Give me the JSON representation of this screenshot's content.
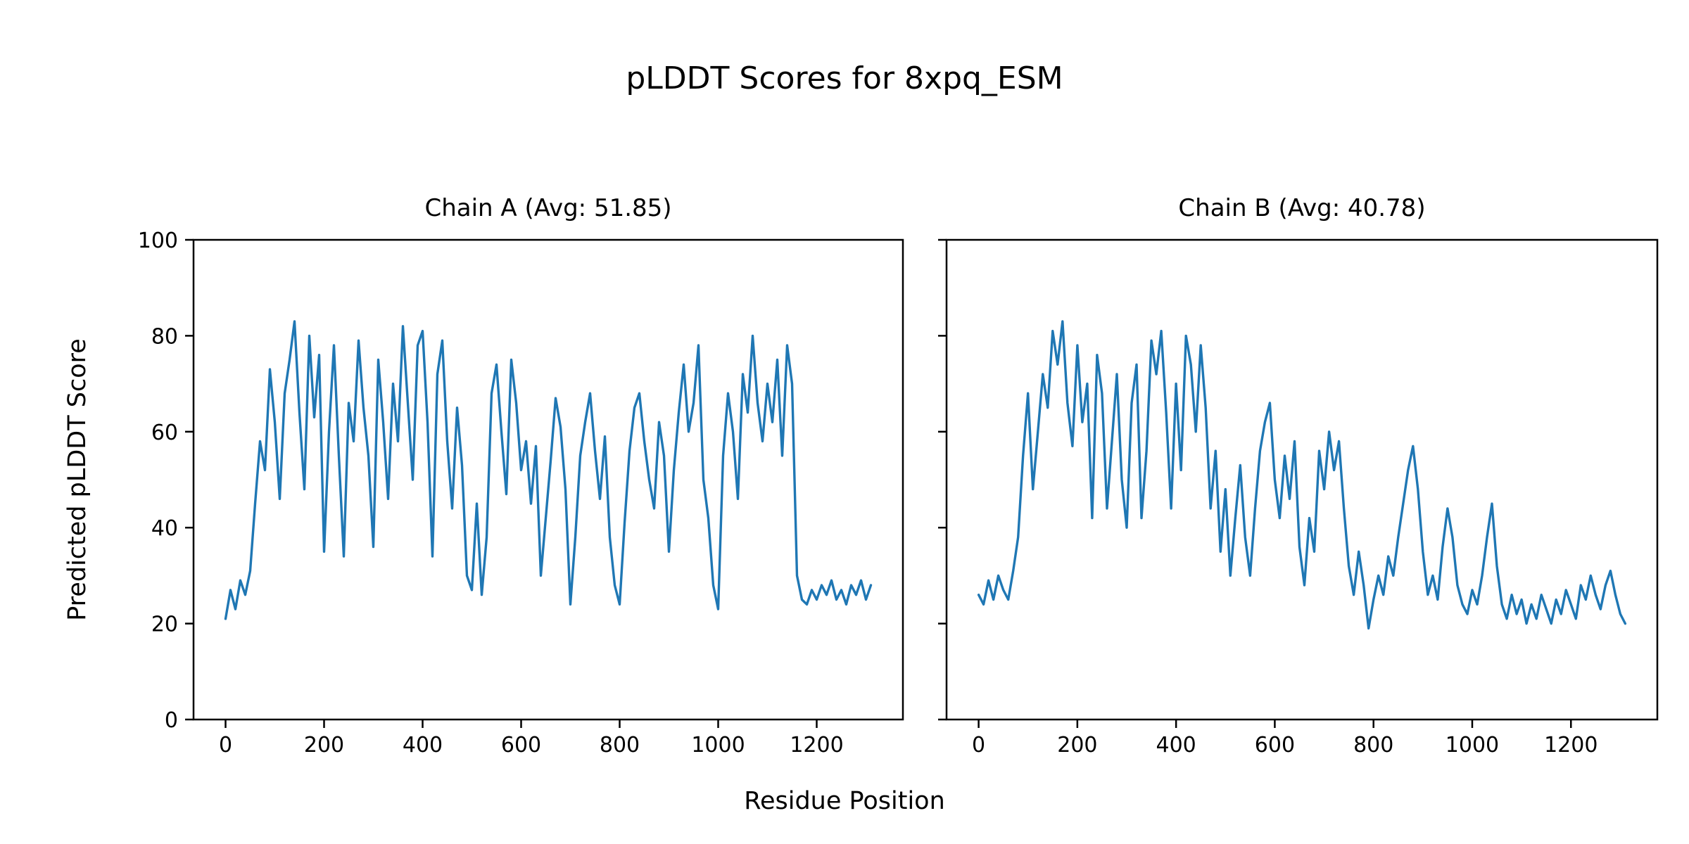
{
  "chart_data": {
    "type": "line",
    "title": "pLDDT Scores for 8xpq_ESM",
    "xlabel": "Residue Position",
    "ylabel": "Predicted pLDDT Score",
    "line_color": "#1f77b4",
    "background_color": "#ffffff",
    "spine_color": "#000000",
    "grid": false,
    "legend_position": "none",
    "xlim": [
      -65,
      1375
    ],
    "ylim": [
      0,
      100
    ],
    "xticks": [
      0,
      200,
      400,
      600,
      800,
      1000,
      1200
    ],
    "yticks": [
      0,
      20,
      40,
      60,
      80,
      100
    ],
    "x_sample_step": 10,
    "subplots": [
      {
        "title": "Chain A (Avg: 51.85)",
        "chain": "A",
        "avg": 51.85,
        "y_tick_labels_visible": true,
        "y": [
          21,
          27,
          23,
          29,
          26,
          31,
          45,
          58,
          52,
          73,
          62,
          46,
          68,
          75,
          83,
          64,
          48,
          80,
          63,
          76,
          35,
          60,
          78,
          55,
          34,
          66,
          58,
          79,
          65,
          55,
          36,
          75,
          62,
          46,
          70,
          58,
          82,
          66,
          50,
          78,
          81,
          62,
          34,
          72,
          79,
          58,
          44,
          65,
          53,
          30,
          27,
          45,
          26,
          38,
          68,
          74,
          60,
          47,
          75,
          66,
          52,
          58,
          45,
          57,
          30,
          42,
          54,
          67,
          61,
          48,
          24,
          38,
          55,
          62,
          68,
          56,
          46,
          59,
          38,
          28,
          24,
          41,
          56,
          65,
          68,
          58,
          50,
          44,
          62,
          55,
          35,
          52,
          64,
          74,
          60,
          66,
          78,
          50,
          42,
          28,
          23,
          55,
          68,
          60,
          46,
          72,
          64,
          80,
          66,
          58,
          70,
          62,
          75,
          55,
          78,
          70,
          30,
          25,
          24,
          27,
          25,
          28,
          26,
          29,
          25,
          27,
          24,
          28,
          26,
          29,
          25,
          28
        ]
      },
      {
        "title": "Chain B (Avg: 40.78)",
        "chain": "B",
        "avg": 40.78,
        "y_tick_labels_visible": false,
        "y": [
          26,
          24,
          29,
          25,
          30,
          27,
          25,
          31,
          38,
          55,
          68,
          48,
          60,
          72,
          65,
          81,
          74,
          83,
          66,
          57,
          78,
          62,
          70,
          42,
          76,
          68,
          44,
          58,
          72,
          50,
          40,
          66,
          74,
          42,
          56,
          79,
          72,
          81,
          64,
          44,
          70,
          52,
          80,
          74,
          60,
          78,
          65,
          44,
          56,
          35,
          48,
          30,
          42,
          53,
          38,
          30,
          44,
          56,
          62,
          66,
          50,
          42,
          55,
          46,
          58,
          36,
          28,
          42,
          35,
          56,
          48,
          60,
          52,
          58,
          44,
          32,
          26,
          35,
          28,
          19,
          25,
          30,
          26,
          34,
          30,
          38,
          45,
          52,
          57,
          48,
          35,
          26,
          30,
          25,
          36,
          44,
          38,
          28,
          24,
          22,
          27,
          24,
          30,
          38,
          45,
          32,
          24,
          21,
          26,
          22,
          25,
          20,
          24,
          21,
          26,
          23,
          20,
          25,
          22,
          27,
          24,
          21,
          28,
          25,
          30,
          26,
          23,
          28,
          31,
          26,
          22,
          20
        ]
      }
    ]
  }
}
